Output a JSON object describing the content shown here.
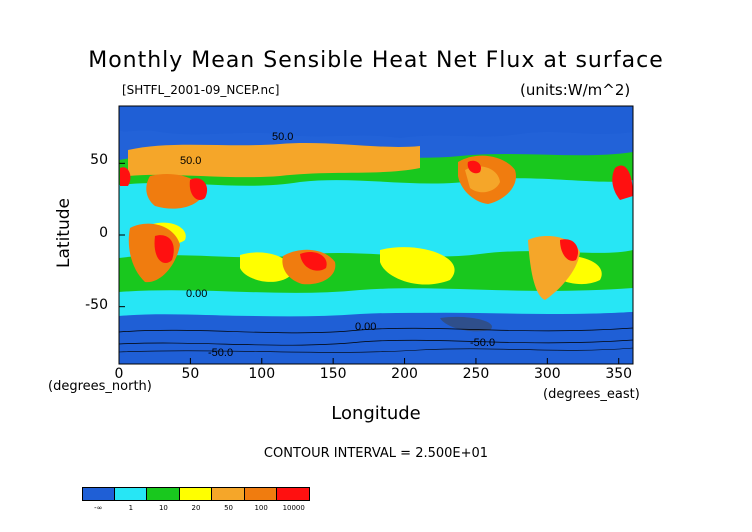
{
  "chart_data": {
    "type": "heatmap",
    "title": "Monthly Mean Sensible Heat Net Flux at surface",
    "subtitle": "[SHTFL_2001-09_NCEP.nc]",
    "units": "(units:W/m^2)",
    "xlabel": "Longitude",
    "ylabel": "Latitude",
    "x_units": "(degrees_east)",
    "y_units": "(degrees_north)",
    "xlim": [
      0,
      360
    ],
    "ylim": [
      -90,
      90
    ],
    "x_ticks": [
      "0",
      "50",
      "100",
      "150",
      "200",
      "250",
      "300",
      "350"
    ],
    "y_ticks": [
      "50",
      "0",
      "-50"
    ],
    "contour_interval": "CONTOUR INTERVAL = 2.500E+01",
    "contour_labels": [
      "50.0",
      "50.0",
      "0.00",
      "0.00",
      "-50.0",
      "-50.0"
    ],
    "colorbar": {
      "labels": [
        "-∞",
        "1",
        "10",
        "20",
        "50",
        "100",
        "10000"
      ],
      "colors": [
        "#1f5fd6",
        "#27e6f5",
        "#19c81e",
        "#ffff00",
        "#f5a629",
        "#f07c0f",
        "#ff1010"
      ]
    },
    "grid": "off",
    "legend": "bottom-left"
  }
}
